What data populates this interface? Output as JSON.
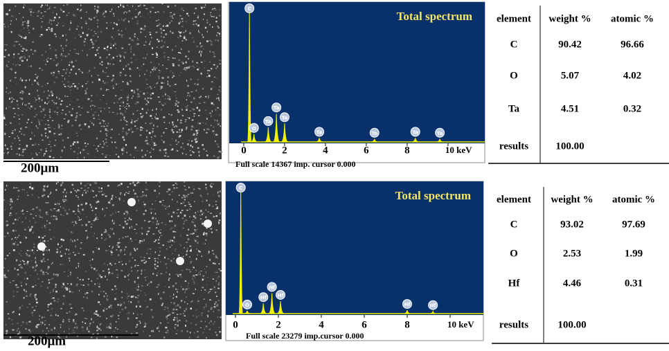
{
  "panels": [
    {
      "sem": {
        "scale_label": "200μm"
      },
      "spectrum": {
        "type": "spectrum",
        "title": "Total spectrum",
        "xlim": [
          -0.71,
          11.8
        ],
        "xticks": [
          0,
          2,
          4,
          6,
          8,
          {
            "value": 10,
            "label": "10 keV"
          }
        ],
        "ylim": [
          0,
          14367
        ],
        "peaks": [
          {
            "label": "C",
            "kev": 0.28,
            "counts": 13900
          },
          {
            "label": "O",
            "kev": 0.5,
            "counts": 800
          },
          {
            "label": "Ta",
            "kev": 1.2,
            "counts": 1500
          },
          {
            "label": "Ta",
            "kev": 1.6,
            "counts": 2900
          },
          {
            "label": "Ta",
            "kev": 2.0,
            "counts": 1900
          },
          {
            "label": "Ta",
            "kev": 3.7,
            "counts": 400
          },
          {
            "label": "Ta",
            "kev": 6.4,
            "counts": 300
          },
          {
            "label": "Ta",
            "kev": 8.4,
            "counts": 400
          },
          {
            "label": "Ta",
            "kev": 9.6,
            "counts": 300
          }
        ],
        "footer": "Full scale 14367 imp. cursor 0.000"
      },
      "table": {
        "header": [
          "element",
          "weight %",
          "atomic %"
        ],
        "rows": [
          [
            "C",
            "90.42",
            "96.66"
          ],
          [
            "O",
            "5.07",
            "4.02"
          ],
          [
            "Ta",
            "4.51",
            "0.32"
          ]
        ],
        "results": [
          "results",
          "100.00"
        ]
      }
    },
    {
      "sem": {
        "scale_label": "200μm"
      },
      "spectrum": {
        "type": "spectrum",
        "title": "Total spectrum",
        "xlim": [
          -0.45,
          11.55
        ],
        "xticks": [
          0,
          2,
          4,
          6,
          8,
          {
            "value": 10,
            "label": "10 keV"
          }
        ],
        "ylim": [
          0,
          23279
        ],
        "peaks": [
          {
            "label": "C",
            "kev": 0.25,
            "counts": 22600
          },
          {
            "label": "O",
            "kev": 0.55,
            "counts": 500
          },
          {
            "label": "Hf",
            "kev": 1.3,
            "counts": 1800
          },
          {
            "label": "Hf",
            "kev": 1.7,
            "counts": 3600
          },
          {
            "label": "Hf",
            "kev": 2.1,
            "counts": 2200
          },
          {
            "label": "Hf",
            "kev": 8.0,
            "counts": 600
          },
          {
            "label": "Hf",
            "kev": 9.2,
            "counts": 400
          }
        ],
        "footer": "Full  scale 23279  imp.cursor 0.000"
      },
      "table": {
        "header": [
          "element",
          "weight %",
          "atomic %"
        ],
        "rows": [
          [
            "C",
            "93.02",
            "97.69"
          ],
          [
            "O",
            "2.53",
            "1.99"
          ],
          [
            "Hf",
            "4.46",
            "0.31"
          ]
        ],
        "results": [
          "results",
          "100.00"
        ]
      }
    }
  ]
}
